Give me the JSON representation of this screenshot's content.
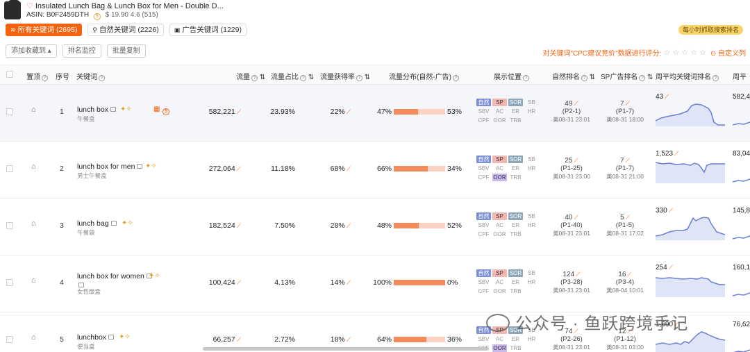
{
  "product": {
    "title": "Insulated Lunch Bag & Lunch Box for Men - Double D...",
    "asin_label": "ASIN:",
    "asin": "B0F2459DTH",
    "price_rating": "$ 19.90 4.6 (515)"
  },
  "tabs": [
    {
      "label": "所有关键词 (2695)"
    },
    {
      "label": "自然关键词 (2226)"
    },
    {
      "label": "广告关键词 (1229)"
    }
  ],
  "hourly_badge": "每小时抓取搜索排名",
  "toolbar": {
    "add_favorite": "添加收藏到",
    "rank_monitor": "排名监控",
    "batch_copy": "批量复制"
  },
  "cpc": {
    "text": "对关键词\"CPC建议竞价\"数据进行评分:",
    "custom": "自定义列"
  },
  "columns": {
    "pin": "置顶",
    "index": "序号",
    "keyword": "关键词",
    "volume": "流量",
    "share": "流量占比",
    "capture": "流量获得率",
    "dist": "流量分布(自然-广告)",
    "position": "展示位置",
    "organic_rank": "自然排名",
    "sp_rank": "SP广告排名",
    "weekly_rank": "周平均关键词排名",
    "weekly_vol": "周平"
  },
  "position_labels": [
    "自然",
    "SP",
    "SOR",
    "SB",
    "SBV",
    "AC",
    "ER",
    "HR",
    "CPF",
    "OOR",
    "TRB"
  ],
  "rows": [
    {
      "index": "1",
      "keyword": "lunch box",
      "keyword_cn": "午餐盒",
      "volume": "582,221",
      "share": "23.93%",
      "capture": "22%",
      "organic_pct": "47%",
      "ad_pct": "53%",
      "organic_share": 0.47,
      "pos_on": [
        "自然",
        "SP",
        "SOR"
      ],
      "organic_rank": "49",
      "organic_page": "(P2-1)",
      "organic_ts": "美08-31 23:01",
      "sp_rank": "7",
      "sp_page": "(P1-7)",
      "sp_ts": "美08-31 18:00",
      "weekly": "43",
      "weekly_vol": "582,4"
    },
    {
      "index": "2",
      "keyword": "lunch box for men",
      "keyword_cn": "男士午餐盒",
      "volume": "272,064",
      "share": "11.18%",
      "capture": "68%",
      "organic_pct": "66%",
      "ad_pct": "34%",
      "organic_share": 0.66,
      "pos_on": [
        "自然",
        "SP",
        "SOR",
        "OOR"
      ],
      "organic_rank": "25",
      "organic_page": "(P1-25)",
      "organic_ts": "美08-31 23:00",
      "sp_rank": "7",
      "sp_page": "(P1-7)",
      "sp_ts": "美08-31 21:00",
      "weekly": "1,523",
      "weekly_vol": "83,04"
    },
    {
      "index": "3",
      "keyword": "lunch bag",
      "keyword_cn": "午餐袋",
      "volume": "182,524",
      "share": "7.50%",
      "capture": "28%",
      "organic_pct": "48%",
      "ad_pct": "52%",
      "organic_share": 0.48,
      "pos_on": [
        "自然",
        "SP",
        "SOR"
      ],
      "organic_rank": "40",
      "organic_page": "(P1-40)",
      "organic_ts": "美08-31 23:01",
      "sp_rank": "5",
      "sp_page": "(P1-5)",
      "sp_ts": "美08-31 17:02",
      "weekly": "330",
      "weekly_vol": "145,8"
    },
    {
      "index": "4",
      "keyword": "lunch box for women",
      "keyword_cn": "女性饭盒",
      "volume": "100,424",
      "share": "4.13%",
      "capture": "14%",
      "organic_pct": "100%",
      "ad_pct": "0%",
      "organic_share": 1.0,
      "pos_on": [
        "自然",
        "SP",
        "SOR"
      ],
      "organic_rank": "124",
      "organic_page": "(P3-28)",
      "organic_ts": "美08-31 23:01",
      "sp_rank": "16",
      "sp_page": "(P3-4)",
      "sp_ts": "美08-04 10:01",
      "weekly": "254",
      "weekly_vol": "160,1"
    },
    {
      "index": "5",
      "keyword": "lunchbox",
      "keyword_cn": "便当盒",
      "volume": "66,257",
      "share": "2.72%",
      "capture": "18%",
      "organic_pct": "64%",
      "ad_pct": "36%",
      "organic_share": 0.64,
      "pos_on": [
        "自然",
        "SP",
        "SOR",
        "OOR"
      ],
      "organic_rank": "74",
      "organic_page": "(P2-26)",
      "organic_ts": "美08-31 23:01",
      "sp_rank": "12",
      "sp_page": "(P1-12)",
      "sp_ts": "美08-31 03:00",
      "weekly": "1,690",
      "weekly_vol": "76,62"
    }
  ],
  "watermark": "公众号 · 鱼跃跨境手记",
  "colors": {
    "accent": "#f4620e",
    "organic_bar": "#f58a5c",
    "ad_bar": "#fbd2c2",
    "spark": "#6a7fd4"
  }
}
